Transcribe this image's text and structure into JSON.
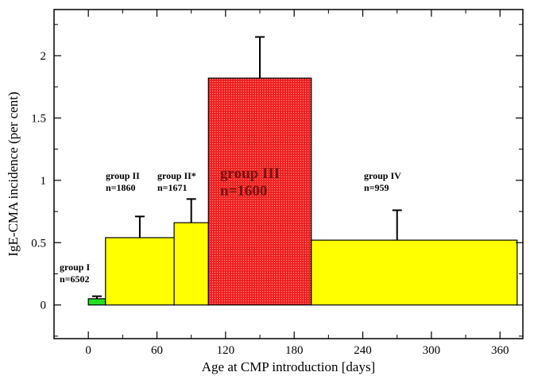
{
  "chart_data": {
    "type": "bar",
    "xlabel": "Age at CMP introduction [days]",
    "ylabel": "IgE-CMA incidence (per cent)",
    "xlim": [
      -30,
      380
    ],
    "ylim": [
      -0.27,
      2.37
    ],
    "x_ticks": [
      0,
      60,
      120,
      180,
      240,
      300,
      360
    ],
    "y_ticks": [
      0,
      0.5,
      1,
      1.5,
      2
    ],
    "y_tick_labels": [
      "0",
      "0.5",
      "1",
      "1.5",
      "2"
    ],
    "grid": false,
    "bars": [
      {
        "name": "group I",
        "n_label": "n=6502",
        "x_start": 0,
        "x_end": 15,
        "value": 0.05,
        "error": 0.02,
        "error_x": 7.5,
        "color": "#22dd22"
      },
      {
        "name": "group II",
        "n_label": "n=1860",
        "x_start": 15,
        "x_end": 75,
        "value": 0.54,
        "error": 0.17,
        "error_x": 45,
        "color": "#ffff00"
      },
      {
        "name": "group II*",
        "n_label": "n=1671",
        "x_start": 75,
        "x_end": 105,
        "value": 0.66,
        "error": 0.19,
        "error_x": 90,
        "color": "#ffff00"
      },
      {
        "name": "group III",
        "n_label": "n=1600",
        "x_start": 105,
        "x_end": 195,
        "value": 1.82,
        "error": 0.33,
        "error_x": 150,
        "color": "#ee2222"
      },
      {
        "name": "group IV",
        "n_label": "n=959",
        "x_start": 195,
        "x_end": 375,
        "value": 0.52,
        "error": 0.24,
        "error_x": 270,
        "color": "#ffff00"
      }
    ]
  }
}
